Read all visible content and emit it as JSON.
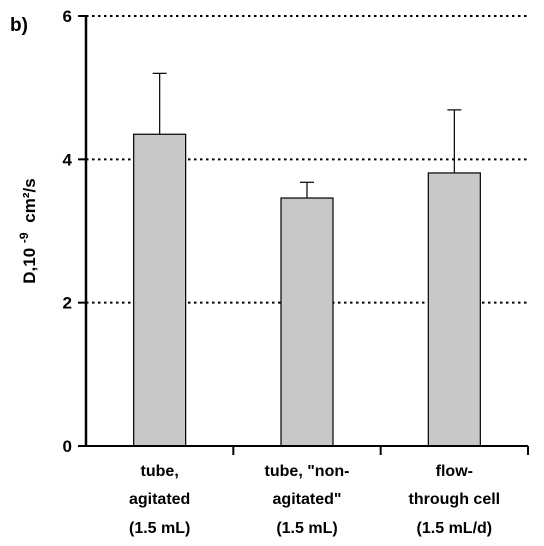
{
  "chart_data": {
    "type": "bar",
    "panel_label": "b)",
    "ylabel": {
      "main": "D,10",
      "exponent": "-9",
      "unit": "cm²/s"
    },
    "ylim": [
      0,
      6
    ],
    "yticks": [
      "0",
      "2",
      "4",
      "6"
    ],
    "grid": "horizontal dotted",
    "categories": [
      [
        "tube,",
        "agitated",
        "(1.5 mL)"
      ],
      [
        "tube, \"non-",
        "agitated\"",
        "(1.5 mL)"
      ],
      [
        "flow-",
        "through cell",
        "(1.5 mL/d)"
      ]
    ],
    "values": [
      4.35,
      3.46,
      3.81
    ],
    "error_upper": [
      0.85,
      0.22,
      0.88
    ],
    "colors": {
      "bar_fill": "#c8c8c8",
      "bar_stroke": "#000000",
      "axis": "#000000",
      "grid": "#000000"
    }
  }
}
